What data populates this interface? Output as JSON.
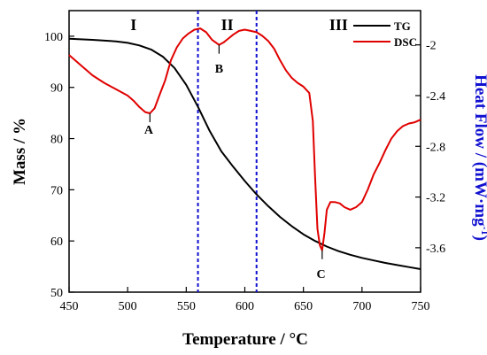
{
  "chart_data": {
    "type": "line",
    "xlabel": "Temperature / °C",
    "ylabel_left": "Mass / %",
    "ylabel_right_main": "Heat Flow / (mW·mg",
    "ylabel_right_sup": "-1",
    "ylabel_right_close": ")",
    "xlim": [
      450,
      750
    ],
    "ylim_left": [
      50,
      105
    ],
    "ylim_right": [
      -3.95,
      -1.73
    ],
    "x_ticks": [
      450,
      500,
      550,
      600,
      650,
      700,
      750
    ],
    "y_left_ticks": [
      50,
      60,
      70,
      80,
      90,
      100
    ],
    "y_right_ticks": [
      -3.6,
      -3.2,
      -2.8,
      -2.4,
      -2.0
    ],
    "y_right_tick_labels": [
      "-3.6",
      "-3.2",
      "-2.8",
      "-2.4",
      "-2"
    ],
    "x_tick_labels": [
      "450",
      "500",
      "550",
      "600",
      "650",
      "700",
      "750"
    ],
    "y_left_tick_labels": [
      "50",
      "60",
      "70",
      "80",
      "90",
      "100"
    ],
    "legend": [
      {
        "name": "TG",
        "color": "#000000"
      },
      {
        "name": "DSC",
        "color": "#e00000"
      }
    ],
    "legend_position": "top-right",
    "colors": {
      "tg": "#000000",
      "dsc": "#e00000",
      "divider": "#1010d0",
      "right_axis_label": "#1010d0"
    },
    "regions": [
      {
        "label": "I",
        "x": 505
      },
      {
        "label": "II",
        "x": 585
      },
      {
        "label": "III",
        "x": 680
      }
    ],
    "dividers": [
      560,
      610
    ],
    "annotations": [
      {
        "label": "A",
        "x": 519,
        "y": -2.54,
        "label_x": 518,
        "label_y": -2.7
      },
      {
        "label": "B",
        "x": 578,
        "y": -2.0,
        "label_x": 578,
        "label_y": -2.22
      },
      {
        "label": "C",
        "x": 666,
        "y": -3.62,
        "label_x": 665,
        "label_y": -3.84
      }
    ],
    "series": [
      {
        "name": "TG",
        "axis": "left",
        "x": [
          450,
          470,
          490,
          500,
          510,
          520,
          530,
          540,
          550,
          560,
          570,
          580,
          590,
          600,
          610,
          620,
          630,
          640,
          650,
          660,
          670,
          680,
          690,
          700,
          710,
          720,
          730,
          740,
          750
        ],
        "y": [
          99.5,
          99.3,
          99.0,
          98.7,
          98.2,
          97.4,
          96.0,
          93.8,
          90.5,
          86.2,
          81.5,
          77.5,
          74.5,
          71.7,
          69.1,
          66.8,
          64.7,
          62.9,
          61.3,
          60.0,
          58.9,
          58.0,
          57.3,
          56.7,
          56.2,
          55.7,
          55.3,
          54.9,
          54.5
        ]
      },
      {
        "name": "DSC",
        "axis": "right",
        "x": [
          450,
          460,
          470,
          480,
          490,
          500,
          505,
          510,
          515,
          519,
          523,
          527,
          532,
          537,
          542,
          547,
          552,
          557,
          562,
          567,
          572,
          575,
          578,
          582,
          586,
          590,
          595,
          600,
          605,
          610,
          615,
          620,
          625,
          630,
          635,
          640,
          645,
          650,
          655,
          658,
          660,
          662,
          664,
          666,
          668,
          670,
          673,
          677,
          681,
          685,
          690,
          695,
          700,
          705,
          710,
          715,
          720,
          725,
          730,
          735,
          740,
          745,
          750
        ],
        "y": [
          -2.08,
          -2.16,
          -2.24,
          -2.3,
          -2.35,
          -2.4,
          -2.44,
          -2.49,
          -2.53,
          -2.54,
          -2.5,
          -2.4,
          -2.28,
          -2.12,
          -2.02,
          -1.95,
          -1.91,
          -1.88,
          -1.87,
          -1.9,
          -1.96,
          -1.98,
          -2.0,
          -1.98,
          -1.95,
          -1.92,
          -1.89,
          -1.88,
          -1.89,
          -1.9,
          -1.93,
          -1.97,
          -2.03,
          -2.12,
          -2.2,
          -2.26,
          -2.3,
          -2.33,
          -2.38,
          -2.6,
          -3.05,
          -3.45,
          -3.58,
          -3.62,
          -3.48,
          -3.3,
          -3.24,
          -3.24,
          -3.25,
          -3.28,
          -3.3,
          -3.28,
          -3.24,
          -3.14,
          -3.02,
          -2.93,
          -2.83,
          -2.74,
          -2.68,
          -2.64,
          -2.62,
          -2.61,
          -2.59
        ]
      }
    ]
  }
}
